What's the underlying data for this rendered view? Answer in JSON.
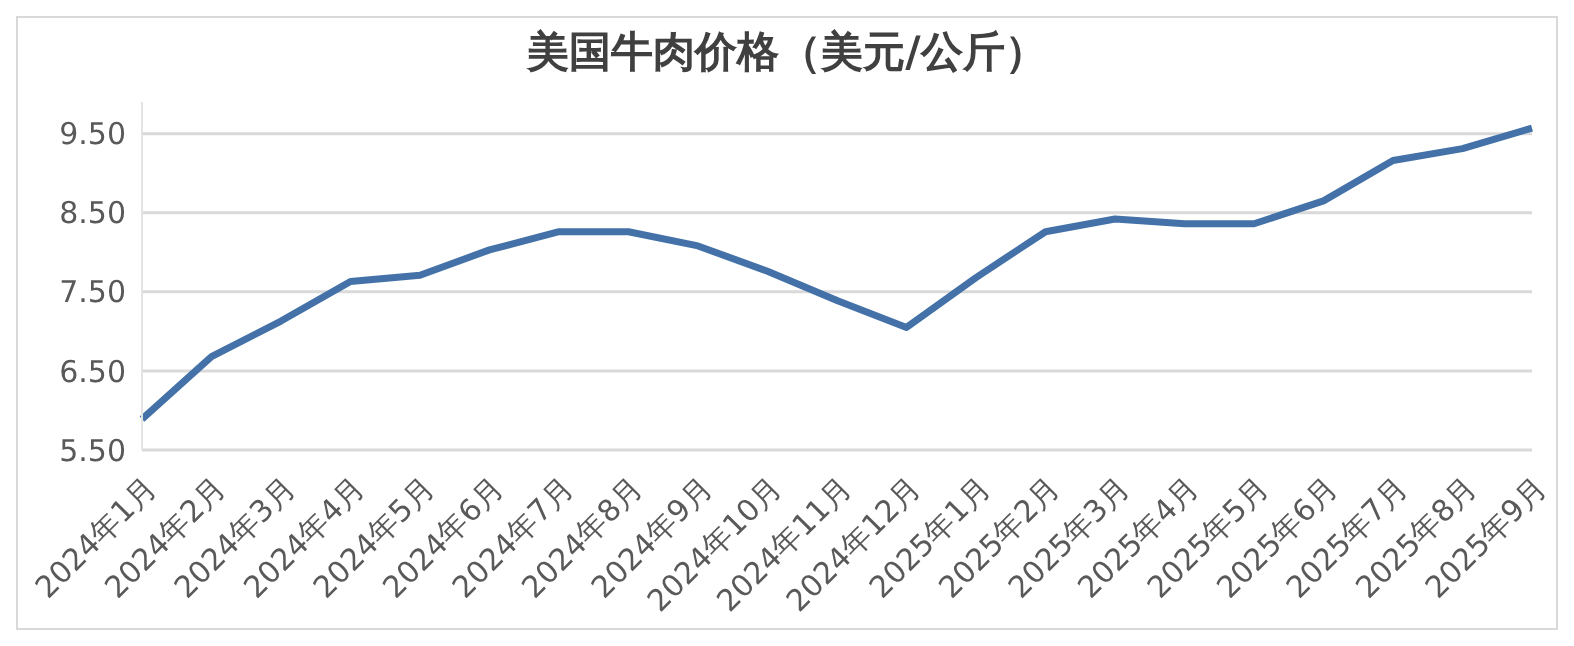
{
  "chart_data": {
    "type": "line",
    "title": "美国牛肉价格（美元/公斤）",
    "categories": [
      "2024年1月",
      "2024年2月",
      "2024年3月",
      "2024年4月",
      "2024年5月",
      "2024年6月",
      "2024年7月",
      "2024年8月",
      "2024年9月",
      "2024年10月",
      "2024年11月",
      "2024年12月",
      "2025年1月",
      "2025年2月",
      "2025年3月",
      "2025年4月",
      "2025年5月",
      "2025年6月",
      "2025年7月",
      "2025年8月",
      "2025年9月"
    ],
    "series": [
      {
        "color": "#4472a8",
        "values": [
          5.89,
          6.68,
          7.13,
          7.63,
          7.71,
          8.03,
          8.26,
          8.26,
          8.08,
          7.76,
          7.39,
          7.05,
          7.68,
          8.26,
          8.42,
          8.36,
          8.36,
          8.65,
          9.16,
          9.31,
          9.57
        ]
      }
    ],
    "ylim": [
      5.5,
      9.9
    ],
    "yticks": [
      {
        "value": 5.5,
        "label": "5.50"
      },
      {
        "value": 6.5,
        "label": "6.50"
      },
      {
        "value": 7.5,
        "label": "7.50"
      },
      {
        "value": 8.5,
        "label": "8.50"
      },
      {
        "value": 9.5,
        "label": "9.50"
      }
    ],
    "grid": "y",
    "legend": false,
    "marker": "none",
    "line_style": "solid"
  }
}
